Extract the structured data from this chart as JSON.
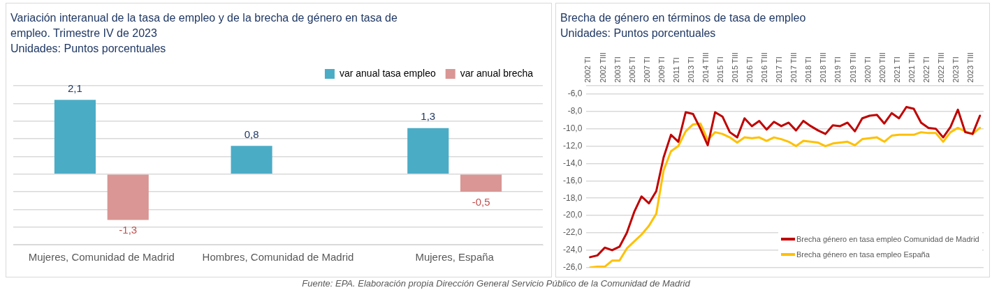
{
  "chart_data": [
    {
      "type": "bar",
      "title": "Variación interanual de la tasa de empleo y de la brecha de género en tasa de empleo. Trimestre IV de 2023",
      "subtitle": "Unidades: Puntos porcentuales",
      "categories": [
        "Mujeres, Comunidad de Madrid",
        "Hombres, Comunidad de Madrid",
        "Mujeres, España"
      ],
      "series": [
        {
          "name": "var anual tasa empleo",
          "color": "#4bacc6",
          "values": [
            2.1,
            0.8,
            1.3
          ],
          "value_labels": [
            "2,1",
            "0,8",
            "1,3"
          ]
        },
        {
          "name": "var anual brecha",
          "color": "#d99694",
          "values": [
            -1.3,
            null,
            -0.5
          ],
          "value_labels": [
            "-1,3",
            null,
            "-0,5"
          ]
        }
      ],
      "tick_labels": "x",
      "grid": "y",
      "legend": "top right",
      "annotations": [
        "Fuente: EPA. Elaboración propia Dirección General Servicio Público de la Comunidad de Madrid"
      ]
    },
    {
      "type": "line",
      "title": "Brecha de género en términos de tasa de empleo",
      "subtitle": "Unidades: Puntos porcentuales",
      "categories": [
        "2002 TI",
        null,
        "2002 TIII",
        null,
        "2003 TI",
        null,
        "2005 TI",
        null,
        "2007 TI",
        null,
        "2009 TI",
        null,
        "2011 TI",
        null,
        "2013 TI",
        null,
        "2014 TIII",
        null,
        "2015 TI",
        null,
        "2015 TIII",
        null,
        "2016 TI",
        null,
        "2016 TIII",
        null,
        "2017 TI",
        null,
        "2017 TIII",
        null,
        "2018 TI",
        null,
        "2018 TIII",
        null,
        "2019 TI",
        null,
        "2019 TIII",
        null,
        "2020 TI",
        null,
        "2020 TIII",
        null,
        "2021 TI",
        null,
        "2021 TIII",
        null,
        "2022 TI",
        null,
        "2022 TIII",
        null,
        "2023 TI",
        null,
        "2023 TIII",
        null
      ],
      "series": [
        {
          "name": "Brecha género en tasa empleo Comunidad de Madrid",
          "color": "#c00000",
          "values": [
            -24.8,
            -24.6,
            -23.7,
            -24.0,
            -23.6,
            -22.0,
            -19.6,
            -17.8,
            -18.6,
            -17.2,
            -13.3,
            -10.7,
            -11.5,
            -8.1,
            -8.3,
            -10.0,
            -11.9,
            -8.1,
            -8.6,
            -10.4,
            -11.0,
            -8.8,
            -9.7,
            -9.1,
            -10.1,
            -9.2,
            -9.7,
            -9.3,
            -10.2,
            -9.1,
            -9.7,
            -10.2,
            -10.6,
            -9.6,
            -9.7,
            -9.3,
            -10.3,
            -8.8,
            -8.5,
            -8.4,
            -9.4,
            -8.2,
            -8.8,
            -7.5,
            -7.7,
            -9.3,
            -9.9,
            -10.0,
            -11.0,
            -9.8,
            -7.8,
            -10.4,
            -10.6,
            -8.5
          ]
        },
        {
          "name": "Brecha género en tasa empleo España",
          "color": "#ffc000",
          "values": [
            -26.0,
            -25.9,
            -25.9,
            -25.2,
            -25.2,
            -23.8,
            -23.0,
            -22.2,
            -21.2,
            -19.8,
            -14.8,
            -12.6,
            -12.0,
            -10.3,
            -9.5,
            -9.4,
            -11.3,
            -10.4,
            -10.6,
            -11.0,
            -11.6,
            -11.0,
            -11.1,
            -11.0,
            -11.4,
            -11.0,
            -11.2,
            -11.5,
            -12.0,
            -11.4,
            -11.5,
            -11.6,
            -12.0,
            -11.7,
            -11.6,
            -11.5,
            -11.9,
            -11.2,
            -11.1,
            -11.0,
            -11.5,
            -10.8,
            -10.7,
            -10.7,
            -10.7,
            -10.4,
            -10.5,
            -10.5,
            -11.5,
            -10.4,
            -9.9,
            -10.3,
            -10.6,
            -9.9
          ]
        }
      ],
      "ylim": [
        -26,
        -5
      ],
      "yticks": [
        {
          "value": -5,
          "label": null
        },
        {
          "value": -26,
          "label": "-26,0"
        },
        {
          "value": -24,
          "label": "-24,0"
        },
        {
          "value": -22,
          "label": "-22,0"
        },
        {
          "value": -20,
          "label": "-20,0"
        },
        {
          "value": -18,
          "label": "-18,0"
        },
        {
          "value": -16,
          "label": "-16,0"
        },
        {
          "value": -14,
          "label": "-14,0"
        },
        {
          "value": -12,
          "label": "-12,0"
        },
        {
          "value": -10,
          "label": "-10,0"
        },
        {
          "value": -8,
          "label": "-8,0"
        },
        {
          "value": -6,
          "label": "-6,0"
        }
      ],
      "grid": "y",
      "legend": "bottom right",
      "marker": "none",
      "line_style": "solid"
    }
  ]
}
